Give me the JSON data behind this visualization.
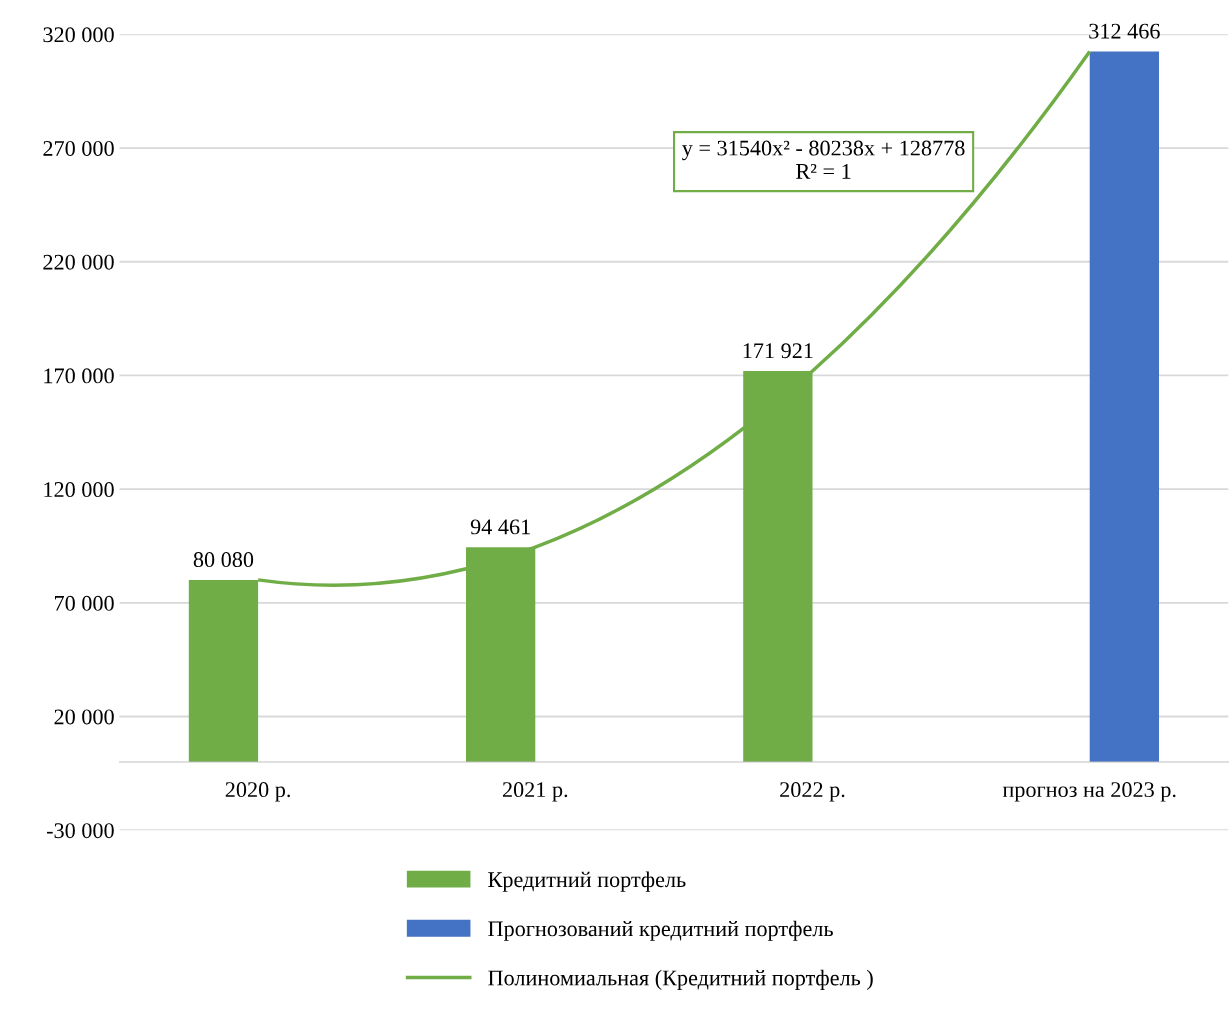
{
  "chart_data": {
    "type": "bar",
    "categories": [
      "2020 р.",
      "2021 р.",
      "2022 р.",
      "прогноз на 2023 р."
    ],
    "series": [
      {
        "name": "Кредитний портфель",
        "color": "#70ad47",
        "values": [
          80080,
          94461,
          171921,
          null
        ],
        "value_labels": [
          "80 080",
          "94 461",
          "171 921",
          null
        ]
      },
      {
        "name": "Прогнозований кредитний портфель",
        "color": "#4472c4",
        "values": [
          null,
          null,
          null,
          312466
        ],
        "value_labels": [
          null,
          null,
          null,
          "312 466"
        ]
      },
      {
        "name": "Полиномиальная (Кредитний портфель )",
        "type": "line",
        "color": "#70ad47",
        "values": [
          80080,
          94462,
          171924,
          312466
        ]
      }
    ],
    "ylim": [
      -30000,
      320000
    ],
    "yticks": [
      {
        "value": -30000,
        "label": "-30 000"
      },
      {
        "value": 20000,
        "label": "20 000"
      },
      {
        "value": 70000,
        "label": "70 000"
      },
      {
        "value": 120000,
        "label": "120 000"
      },
      {
        "value": 170000,
        "label": "170 000"
      },
      {
        "value": 220000,
        "label": "220 000"
      },
      {
        "value": 270000,
        "label": "270 000"
      },
      {
        "value": 320000,
        "label": "320 000"
      }
    ],
    "grid": "y",
    "legend": "bottom",
    "annotations": [
      "y = 31540x² - 80238x + 128778\nR² = 1"
    ]
  }
}
